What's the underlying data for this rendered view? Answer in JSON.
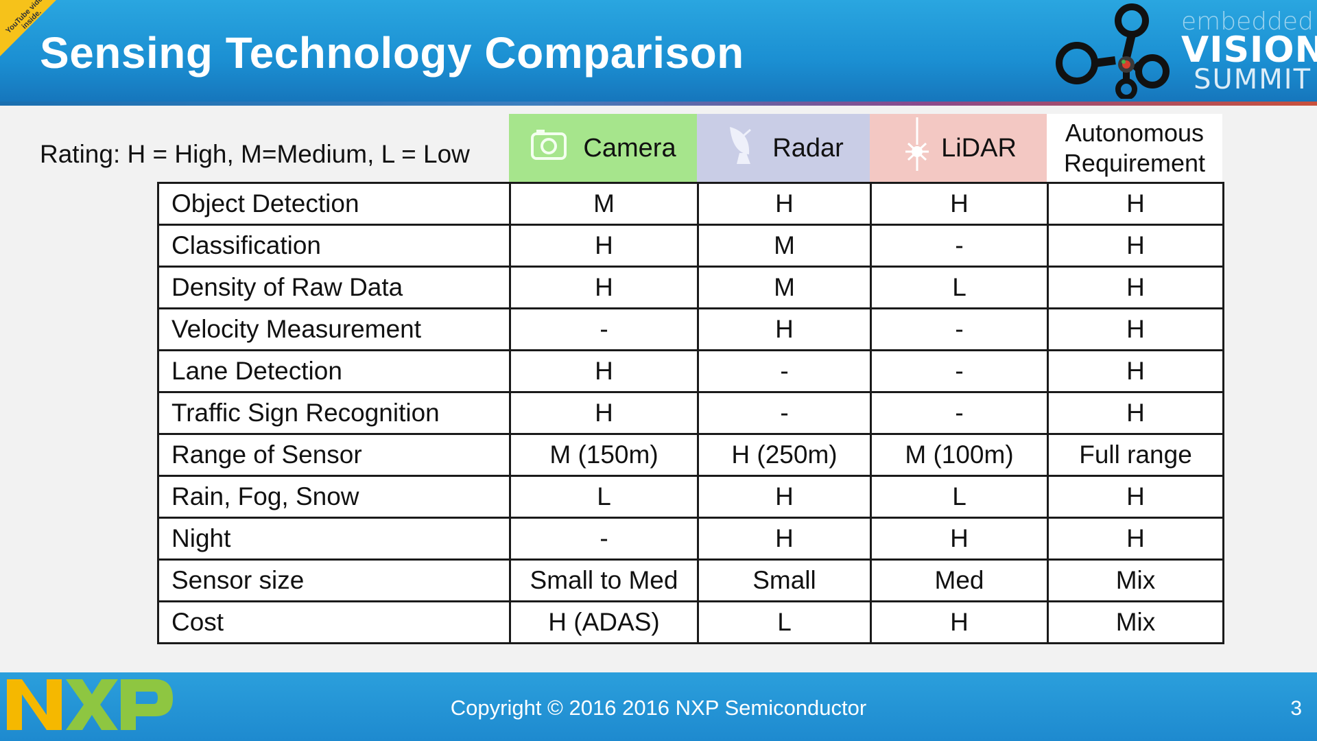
{
  "header": {
    "title": "Sensing Technology Comparison",
    "badge_text": "YouTube video inside.",
    "brand_line1": "embedded",
    "brand_line2": "VISION",
    "brand_line3": "SUMMIT"
  },
  "rating_legend": "Rating: H = High, M=Medium, L = Low",
  "columns": [
    {
      "label": "Camera",
      "icon": "camera-icon",
      "color": "#a6e58c"
    },
    {
      "label": "Radar",
      "icon": "radar-dish-icon",
      "color": "#c9cde6"
    },
    {
      "label": "LiDAR",
      "icon": "laser-icon",
      "color": "#f3c8c3"
    },
    {
      "label_line1": "Autonomous",
      "label_line2": "Requirement",
      "color": "#ffffff"
    }
  ],
  "rows": [
    {
      "label": "Object Detection",
      "values": [
        "M",
        "H",
        "H",
        "H"
      ]
    },
    {
      "label": "Classification",
      "values": [
        "H",
        "M",
        "-",
        "H"
      ]
    },
    {
      "label": "Density of Raw Data",
      "values": [
        "H",
        "M",
        "L",
        "H"
      ]
    },
    {
      "label": "Velocity Measurement",
      "values": [
        "-",
        "H",
        "-",
        "H"
      ]
    },
    {
      "label": "Lane Detection",
      "values": [
        "H",
        "-",
        "-",
        "H"
      ]
    },
    {
      "label": "Traffic Sign Recognition",
      "values": [
        "H",
        "-",
        "-",
        "H"
      ]
    },
    {
      "label": "Range of Sensor",
      "values": [
        "M (150m)",
        "H (250m)",
        "M (100m)",
        "Full range"
      ]
    },
    {
      "label": "Rain, Fog, Snow",
      "values": [
        "L",
        "H",
        "L",
        "H"
      ]
    },
    {
      "label": "Night",
      "values": [
        "-",
        "H",
        "H",
        "H"
      ]
    },
    {
      "label": "Sensor size",
      "values": [
        "Small to Med",
        "Small",
        "Med",
        "Mix"
      ]
    },
    {
      "label": "Cost",
      "values": [
        "H (ADAS)",
        "L",
        "H",
        "Mix"
      ]
    }
  ],
  "footer": {
    "logo_text": "NXP",
    "copyright": "Copyright © 2016 2016 NXP Semiconductor",
    "page_number": "3"
  }
}
